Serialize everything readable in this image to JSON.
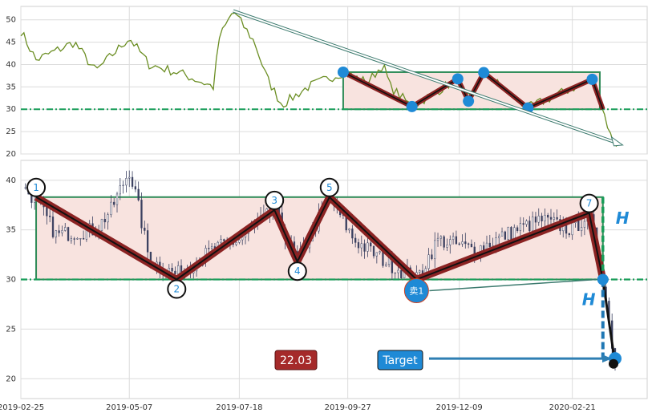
{
  "chart_data": [
    {
      "type": "line",
      "panel": "top",
      "ylim": [
        20,
        53
      ],
      "yticks": [
        20,
        25,
        30,
        35,
        40,
        45,
        50
      ],
      "grid": true,
      "colors": {
        "line": "#6b8e23",
        "box_edge": "#2e8b57",
        "box_fill": "#f8e3df",
        "support": "#1a9e5a",
        "pattern": "#8b2323",
        "markers": "#1f8ad6",
        "arrow": "#3c7a6e"
      },
      "support_level": 30,
      "box": {
        "x0": "2019-09-24",
        "x1": "2020-03-10",
        "y0": 30,
        "y1": 38.3
      },
      "pattern_points": [
        {
          "x": "2019-09-24",
          "y": 38.3
        },
        {
          "x": "2019-11-08",
          "y": 30.6
        },
        {
          "x": "2019-12-08",
          "y": 36.8
        },
        {
          "x": "2019-12-15",
          "y": 31.8
        },
        {
          "x": "2019-12-25",
          "y": 38.2
        },
        {
          "x": "2020-01-23",
          "y": 30.3
        },
        {
          "x": "2020-03-05",
          "y": 36.7
        },
        {
          "x": "2020-03-12",
          "y": 30.0
        }
      ],
      "arrow": {
        "from": {
          "x": "2019-07-14",
          "y": 52
        },
        "to": {
          "x": "2020-03-25",
          "y": 22
        }
      }
    },
    {
      "type": "candlestick",
      "panel": "bottom",
      "ylim": [
        18,
        42
      ],
      "yticks": [
        20,
        25,
        30,
        35,
        40
      ],
      "xticks": [
        "2019-02-25",
        "2019-05-07",
        "2019-07-18",
        "2019-09-27",
        "2019-12-09",
        "2020-02-21"
      ],
      "grid": true,
      "support_level": 30,
      "box": {
        "x0": "2019-03-07",
        "x1": "2020-03-12",
        "y0": 30,
        "y1": 38.3
      },
      "wave_points": [
        {
          "label": "1",
          "x": "2019-03-07",
          "y": 38.3
        },
        {
          "label": "2",
          "x": "2019-06-07",
          "y": 30.0
        },
        {
          "label": "3",
          "x": "2019-08-10",
          "y": 37.0
        },
        {
          "label": "4",
          "x": "2019-08-25",
          "y": 31.8
        },
        {
          "label": "5",
          "x": "2019-09-15",
          "y": 38.3
        },
        {
          "label": "卖1",
          "x": "2019-11-11",
          "y": 30.0
        },
        {
          "label": "7",
          "x": "2020-03-03",
          "y": 36.7
        },
        {
          "label": "",
          "x": "2020-03-12",
          "y": 30.0
        }
      ],
      "breakdown": [
        {
          "x": "2020-03-12",
          "y": 30.0
        },
        {
          "x": "2020-03-20",
          "y": 21.5
        }
      ],
      "sell_marker_label": "卖1",
      "height_label": "H",
      "target_label": "Target",
      "target_value": "22.03",
      "target_price": 22.03,
      "last_close": 21.5
    }
  ]
}
